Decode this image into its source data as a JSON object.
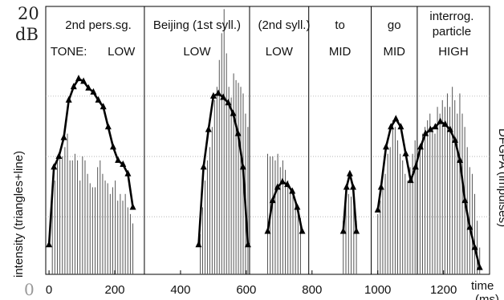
{
  "chart_data": {
    "type": "line",
    "xlabel": "time (ms)",
    "ylabel_left": "intensity (triangles+line)",
    "ylabel_right": "DFGPA (impulses)",
    "y_top_label": "20 dB",
    "y_bottom_label": "0",
    "ylim": [
      0,
      20
    ],
    "xlim": [
      -10,
      1340
    ],
    "x_ticks": [
      0,
      200,
      400,
      600,
      800,
      1000,
      1200
    ],
    "segment_boundaries": [
      290,
      610,
      790,
      980,
      1120
    ],
    "segment_titles": [
      {
        "x": 150,
        "text": "2nd pers.sg."
      },
      {
        "x": 450,
        "text": "Beijing (1st  syll.)"
      },
      {
        "x": 715,
        "text": "(2nd syll.)"
      },
      {
        "x": 885,
        "text": "to"
      },
      {
        "x": 1050,
        "text": "go"
      },
      {
        "x": 1225,
        "text": "interrog."
      },
      {
        "x": 1225,
        "text": "particle"
      }
    ],
    "tone_labels": [
      {
        "x": 60,
        "text": "TONE:"
      },
      {
        "x": 220,
        "text": "LOW"
      },
      {
        "x": 450,
        "text": "LOW"
      },
      {
        "x": 700,
        "text": "LOW"
      },
      {
        "x": 885,
        "text": "MID"
      },
      {
        "x": 1050,
        "text": "MID"
      },
      {
        "x": 1230,
        "text": "HIGH"
      }
    ],
    "reference_lines_y": [
      4.3,
      8.8,
      13.3
    ],
    "intensity_contours": [
      {
        "x": [
          0,
          15,
          30,
          45,
          60,
          75,
          90,
          105,
          120,
          135,
          150,
          165,
          180,
          195,
          210,
          225,
          240,
          255
        ],
        "y": [
          2.2,
          8.0,
          8.8,
          10.2,
          13.0,
          14.0,
          14.6,
          14.4,
          13.9,
          13.6,
          13.0,
          12.5,
          11.0,
          9.5,
          8.5,
          8.2,
          7.5,
          5.0
        ]
      },
      {
        "x": [
          455,
          470,
          485,
          500,
          515,
          530,
          545,
          560,
          575,
          590,
          605
        ],
        "y": [
          2.2,
          8.0,
          10.8,
          13.3,
          13.5,
          13.2,
          12.8,
          12.0,
          10.5,
          8.0,
          2.2
        ]
      },
      {
        "x": [
          665,
          680,
          695,
          710,
          725,
          740,
          755,
          770
        ],
        "y": [
          3.2,
          5.5,
          6.5,
          6.9,
          6.7,
          6.2,
          5.0,
          3.2
        ]
      },
      {
        "x": [
          895,
          905,
          915,
          925,
          935
        ],
        "y": [
          3.2,
          6.5,
          7.5,
          6.5,
          3.2
        ]
      },
      {
        "x": [
          1000,
          1010,
          1025,
          1040,
          1055,
          1070,
          1085,
          1100,
          1115,
          1130,
          1145,
          1160,
          1175,
          1190,
          1205,
          1220,
          1235,
          1250,
          1265,
          1280,
          1295,
          1310
        ],
        "y": [
          4.8,
          6.5,
          9.5,
          11.0,
          11.6,
          11.0,
          9.0,
          7.0,
          8.0,
          9.5,
          10.5,
          10.8,
          11.0,
          11.4,
          11.2,
          10.8,
          10.0,
          8.5,
          5.5,
          3.5,
          2.0,
          0.5
        ]
      }
    ],
    "dfgpa_impulses": [
      {
        "x_range": [
          10,
          255
        ],
        "y": [
          5.5,
          7.0,
          8.8,
          9.2,
          8.8,
          9.5,
          10.5,
          8.5,
          8.5,
          9.0,
          8.5,
          7.0,
          8.8,
          8.5,
          7.5,
          6.8,
          6.5,
          6.5,
          8.0,
          8.5,
          7.5,
          7.0,
          6.8,
          6.0,
          6.5,
          7.0,
          5.5,
          6.0,
          5.5,
          6.0,
          5.0,
          4.5,
          3.8
        ]
      },
      {
        "x_range": [
          460,
          605
        ],
        "y": [
          3.0,
          5.0,
          7.0,
          8.5,
          9.5,
          11.0,
          13.0,
          14.0,
          16.0,
          18.0,
          19.8,
          16.5,
          14.0,
          13.2,
          15.0,
          14.5,
          14.3,
          14.0,
          13.5,
          12.0,
          11.0
        ]
      },
      {
        "x_range": [
          665,
          765
        ],
        "y": [
          9.0,
          8.8,
          8.8,
          8.5,
          9.0,
          8.0,
          8.5,
          7.8,
          7.0,
          6.5,
          6.0,
          5.5,
          5.0,
          4.2
        ]
      },
      {
        "x_range": [
          895,
          935
        ],
        "y": [
          4.0,
          5.5,
          6.0,
          5.8,
          6.5,
          4.0
        ]
      },
      {
        "x_range": [
          1000,
          1310
        ],
        "y": [
          4.5,
          5.5,
          6.5,
          7.5,
          9.0,
          9.5,
          11.5,
          11.0,
          10.0,
          9.0,
          8.5,
          7.5,
          7.0,
          8.0,
          9.0,
          10.0,
          8.0,
          9.5,
          10.5,
          11.0,
          11.5,
          12.0,
          11.0,
          10.5,
          12.5,
          12.0,
          13.0,
          12.5,
          13.5,
          12.5,
          14.0,
          13.0,
          12.0,
          13.5,
          12.0,
          11.0,
          9.5,
          8.0,
          7.5,
          6.0,
          4.0,
          2.0
        ]
      }
    ],
    "grid": false,
    "colors": {
      "line": "#000000",
      "impulse": "#555555",
      "reference": "#aaaaaa",
      "label_gray": "#888888"
    }
  }
}
